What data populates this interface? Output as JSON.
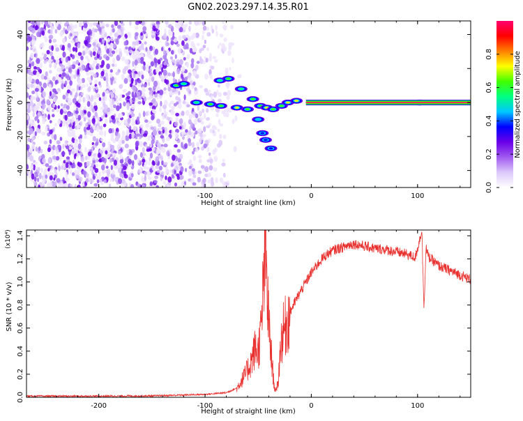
{
  "page": {
    "title": "GN02.2023.297.14.35.R01"
  },
  "colors": {
    "snr_line": "#e8302e",
    "spectrogram_noise": "#7a1ff0",
    "spectrogram_signal": "#e8304a"
  },
  "chart_data": [
    {
      "type": "heatmap",
      "title": "GN02.2023.297.14.35.R01",
      "xlabel": "Height of straight line (km)",
      "ylabel": "Frequency (Hz)",
      "xlim": [
        -268,
        150
      ],
      "ylim": [
        -50,
        48
      ],
      "xticks": [
        -200,
        -100,
        0,
        100
      ],
      "yticks": [
        -40,
        -20,
        0,
        20,
        40
      ],
      "colorbar": {
        "label": "Normalized spectral amplitude",
        "range": [
          0,
          1
        ],
        "ticks": [
          "0.0",
          "0.2",
          "0.4",
          "0.6",
          "0.8"
        ],
        "colormap": [
          "#ffffff",
          "#dcc8fa",
          "#a05af0",
          "#6a00e8",
          "#0000ff",
          "#00c8ff",
          "#00ff80",
          "#40ff00",
          "#ffff00",
          "#ff8000",
          "#ff0000",
          "#ff0070"
        ]
      },
      "features": {
        "noise_region_x": [
          -268,
          -88
        ],
        "signal_line": {
          "x": [
            -5,
            150
          ],
          "y": 0,
          "amplitude": 0.95
        },
        "blobs": [
          {
            "x": -127,
            "y": 10,
            "amp": 0.55
          },
          {
            "x": -120,
            "y": 11,
            "amp": 0.45
          },
          {
            "x": -86,
            "y": 13,
            "amp": 0.4
          },
          {
            "x": -78,
            "y": 14,
            "amp": 0.5
          },
          {
            "x": -108,
            "y": 0,
            "amp": 0.45
          },
          {
            "x": -95,
            "y": -1,
            "amp": 0.5
          },
          {
            "x": -85,
            "y": -2,
            "amp": 0.55
          },
          {
            "x": -70,
            "y": -3,
            "amp": 0.6
          },
          {
            "x": -60,
            "y": -4,
            "amp": 0.55
          },
          {
            "x": -66,
            "y": 8,
            "amp": 0.45
          },
          {
            "x": -55,
            "y": 2,
            "amp": 0.5
          },
          {
            "x": -48,
            "y": -2,
            "amp": 0.55
          },
          {
            "x": -42,
            "y": -3,
            "amp": 0.6
          },
          {
            "x": -36,
            "y": -4,
            "amp": 0.5
          },
          {
            "x": -28,
            "y": -2,
            "amp": 0.55
          },
          {
            "x": -22,
            "y": 0,
            "amp": 0.6
          },
          {
            "x": -14,
            "y": 1,
            "amp": 0.6
          },
          {
            "x": -50,
            "y": -10,
            "amp": 0.35
          },
          {
            "x": -46,
            "y": -18,
            "amp": 0.3
          },
          {
            "x": -43,
            "y": -22,
            "amp": 0.3
          },
          {
            "x": -38,
            "y": -27,
            "amp": 0.25
          },
          {
            "x": 102,
            "y": 0,
            "amp": 0.7
          }
        ]
      }
    },
    {
      "type": "line",
      "xlabel": "Height of straight line (km)",
      "ylabel": "SNR (10 * v/v)",
      "y_multiplier_label": "(x10⁴)",
      "xlim": [
        -268,
        150
      ],
      "ylim": [
        0,
        1.45
      ],
      "xticks": [
        -200,
        -100,
        0,
        100
      ],
      "yticks": [
        "0.0",
        "0.2",
        "0.4",
        "0.6",
        "0.8",
        "1.0",
        "1.2",
        "1.4"
      ],
      "series": [
        {
          "x": [
            -268,
            -200,
            -150,
            -120,
            -100,
            -80,
            -70,
            -62,
            -57,
            -53,
            -50,
            -47,
            -45,
            -43,
            -41,
            -39,
            -37,
            -35,
            -33,
            -31,
            -29,
            -27,
            -25,
            -22,
            -18,
            -14,
            -10,
            -5,
            0,
            5,
            10,
            15,
            20,
            25,
            30,
            35,
            40,
            45,
            50,
            55,
            60,
            70,
            80,
            90,
            98,
            104,
            106,
            108,
            110,
            115,
            120,
            130,
            140,
            150
          ],
          "y": [
            0.01,
            0.01,
            0.012,
            0.02,
            0.025,
            0.04,
            0.08,
            0.2,
            0.3,
            0.42,
            0.4,
            0.6,
            1.0,
            1.3,
            0.8,
            0.5,
            0.3,
            0.1,
            0.05,
            0.15,
            0.45,
            0.55,
            0.6,
            0.68,
            0.78,
            0.85,
            0.92,
            1.0,
            1.08,
            1.14,
            1.2,
            1.24,
            1.27,
            1.29,
            1.3,
            1.32,
            1.33,
            1.32,
            1.31,
            1.3,
            1.29,
            1.28,
            1.26,
            1.24,
            1.21,
            1.45,
            0.78,
            1.3,
            1.22,
            1.18,
            1.14,
            1.1,
            1.06,
            1.02
          ]
        }
      ]
    }
  ]
}
